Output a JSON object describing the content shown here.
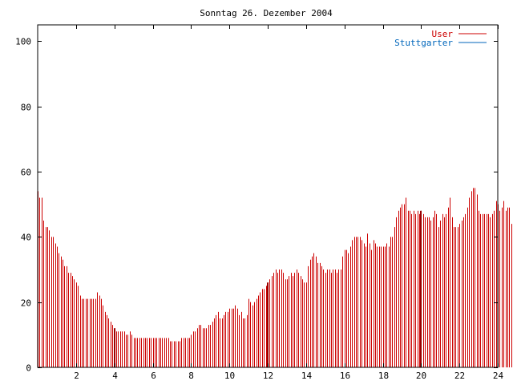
{
  "chart_data": {
    "type": "bar",
    "title": "Sonntag 26. Dezember 2004",
    "xlabel": "",
    "ylabel": "",
    "xlim": [
      0,
      24
    ],
    "ylim": [
      0,
      105
    ],
    "x_ticks": [
      "2",
      "4",
      "6",
      "8",
      "10",
      "12",
      "14",
      "16",
      "18",
      "20",
      "22",
      "24"
    ],
    "y_ticks": [
      "0",
      "20",
      "40",
      "60",
      "80",
      "100"
    ],
    "legend_position": "top-right",
    "grid": false,
    "series": [
      {
        "name": "User",
        "color": "#cc0000",
        "bar_interval_hours": 0.1,
        "x_start": 0,
        "values": [
          54,
          52,
          52,
          45,
          43,
          43,
          42,
          40,
          40,
          38,
          37,
          35,
          34,
          33,
          31,
          31,
          29,
          29,
          28,
          27,
          26,
          25,
          22,
          21,
          21,
          21,
          21,
          21,
          21,
          21,
          21,
          23,
          22,
          21,
          19,
          17,
          16,
          15,
          14,
          13,
          12,
          11,
          11,
          11,
          11,
          11,
          10,
          10,
          11,
          10,
          9,
          9,
          9,
          9,
          9,
          9,
          9,
          9,
          9,
          9,
          9,
          9,
          9,
          9,
          9,
          9,
          9,
          9,
          9,
          8,
          8,
          8,
          8,
          8,
          8,
          9,
          9,
          9,
          9,
          9,
          10,
          11,
          11,
          12,
          13,
          13,
          12,
          12,
          12,
          13,
          13,
          14,
          15,
          16,
          17,
          15,
          15,
          16,
          17,
          17,
          18,
          18,
          18,
          19,
          18,
          16,
          17,
          15,
          15,
          16,
          21,
          20,
          19,
          20,
          21,
          22,
          23,
          24,
          24,
          25,
          26,
          27,
          28,
          29,
          30,
          29,
          30,
          30,
          29,
          27,
          27,
          28,
          29,
          28,
          29,
          30,
          29,
          28,
          27,
          26,
          26,
          31,
          33,
          34,
          35,
          34,
          32,
          32,
          31,
          30,
          29,
          30,
          30,
          29,
          30,
          30,
          29,
          30,
          30,
          34,
          36,
          36,
          35,
          37,
          39,
          40,
          40,
          40,
          40,
          39,
          38,
          37,
          41,
          38,
          36,
          39,
          38,
          37,
          37,
          37,
          37,
          37,
          38,
          37,
          40,
          40,
          43,
          46,
          48,
          49,
          50,
          50,
          52,
          48,
          48,
          47,
          48,
          47,
          48,
          47,
          48,
          47,
          46,
          46,
          46,
          45,
          46,
          48,
          47,
          43,
          45,
          47,
          46,
          47,
          49,
          52,
          46,
          43,
          43,
          43,
          44,
          45,
          46,
          47,
          49,
          52,
          54,
          55,
          55,
          53,
          48,
          47,
          47,
          47,
          47,
          47,
          46,
          47,
          48,
          51,
          50,
          48,
          49,
          51,
          48,
          49,
          49,
          44,
          47,
          47
        ]
      },
      {
        "name": "Stuttgarter",
        "color": "#0066bb",
        "values": []
      }
    ],
    "highlight_bars_x": [
      4,
      12,
      20
    ]
  }
}
